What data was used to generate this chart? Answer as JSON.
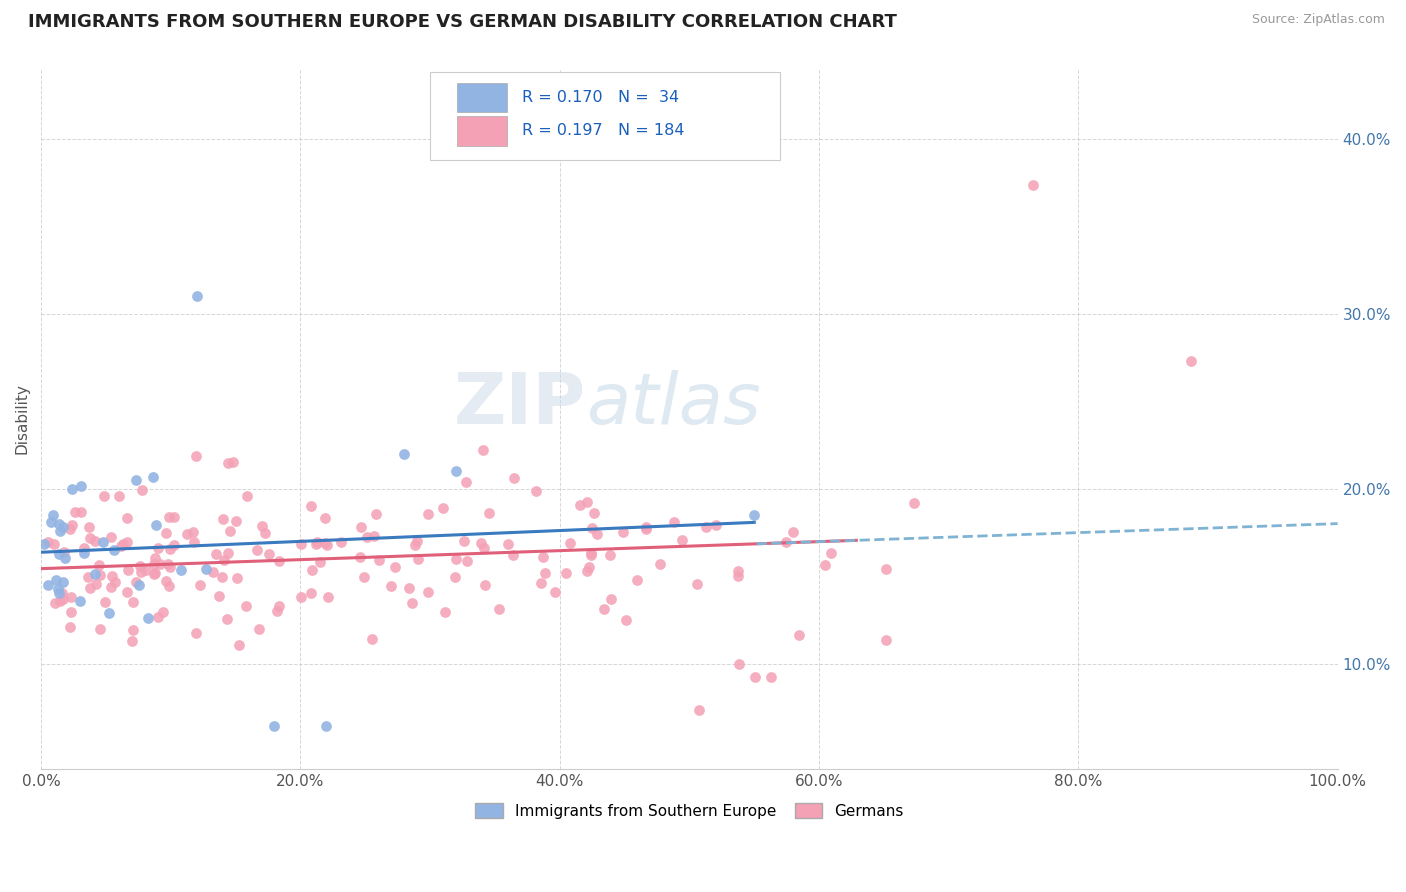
{
  "title": "IMMIGRANTS FROM SOUTHERN EUROPE VS GERMAN DISABILITY CORRELATION CHART",
  "source": "Source: ZipAtlas.com",
  "ylabel": "Disability",
  "xlim": [
    0.0,
    1.0
  ],
  "ylim": [
    0.04,
    0.44
  ],
  "xtick_labels": [
    "0.0%",
    "20.0%",
    "40.0%",
    "60.0%",
    "80.0%",
    "100.0%"
  ],
  "ytick_labels": [
    "10.0%",
    "20.0%",
    "30.0%",
    "40.0%"
  ],
  "legend1_R": "0.170",
  "legend1_N": "34",
  "legend2_R": "0.197",
  "legend2_N": "184",
  "legend_label1": "Immigrants from Southern Europe",
  "legend_label2": "Germans",
  "color_blue": "#92b4e3",
  "color_pink": "#f4a0b5",
  "trendline_blue": "#3a7abf",
  "trendline_pink": "#e0607a",
  "trendline_dashed": "#7fb3d3",
  "watermark_zip": "ZIP",
  "watermark_atlas": "atlas",
  "seed": 99
}
